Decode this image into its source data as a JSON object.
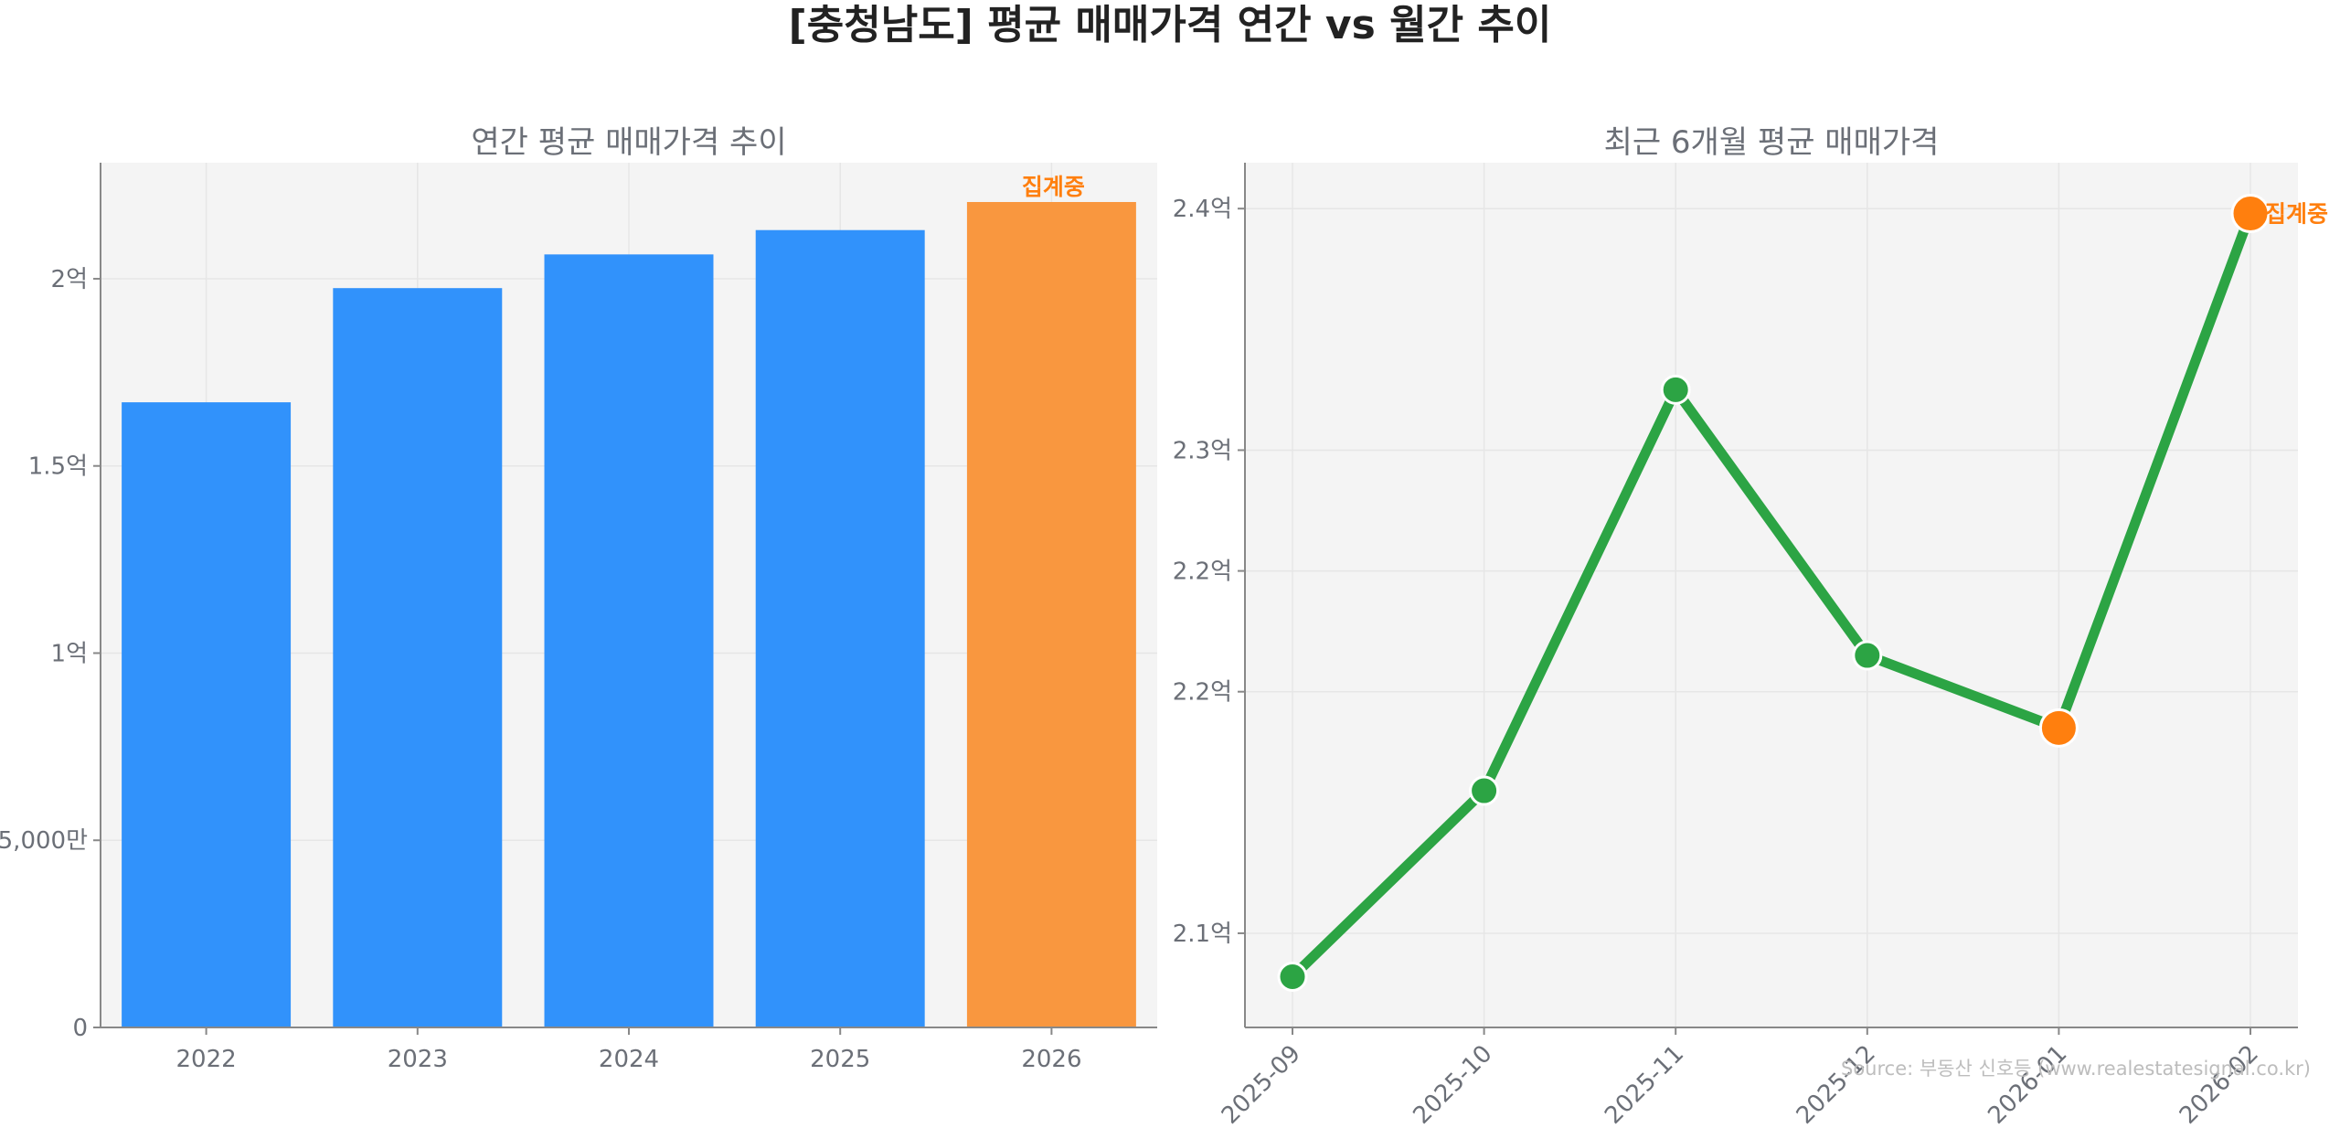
{
  "figure": {
    "title": "[충청남도] 평균 매매가격 연간 vs 월간 추이",
    "source": "Source: 부동산 신호등 (www.realestatesignal.co.kr)"
  },
  "colors": {
    "bar": "#3192fb",
    "highlight": "#f9973f",
    "marker_highlight": "#ff7f0e",
    "line": "#2ca444",
    "panel_bg": "#f4f4f4",
    "grid": "#e6e6e6",
    "axis": "#888888"
  },
  "chart_data": [
    {
      "type": "bar",
      "title": "연간 평균 매매가격 추이",
      "categories": [
        "2022",
        "2023",
        "2024",
        "2025",
        "2026"
      ],
      "values": [
        167000000,
        197500000,
        206500000,
        213000000,
        220500000
      ],
      "highlight_index": 4,
      "annotation": "집계중",
      "ylim": [
        0,
        231000000
      ],
      "yticks": [
        0,
        50000000,
        100000000,
        150000000,
        200000000
      ],
      "yticklabels": [
        "0",
        "5,000만",
        "1억",
        "1.5억",
        "2억"
      ],
      "grid": true,
      "xlabel": "",
      "ylabel": ""
    },
    {
      "type": "line",
      "title": "최근 6개월 평균 매매가격",
      "x": [
        "2025-09",
        "2025-10",
        "2025-11",
        "2025-12",
        "2026-01",
        "2026-02"
      ],
      "values": [
        208200000,
        215900000,
        232500000,
        221500000,
        218500000,
        239800000
      ],
      "highlight_indices": [
        4,
        5
      ],
      "annotation": "집계중",
      "annotation_index": 5,
      "ylim": [
        206100000,
        241900000
      ],
      "yticks": [
        210000000,
        220000000,
        230000000,
        240000000
      ],
      "yticklabels": [
        "2.1억",
        "2.2억",
        "2.3억",
        "2.4억"
      ],
      "extra_ytick": {
        "value": 225000000,
        "label": "2.2억"
      },
      "grid": true,
      "xlabel": "",
      "ylabel": ""
    }
  ]
}
